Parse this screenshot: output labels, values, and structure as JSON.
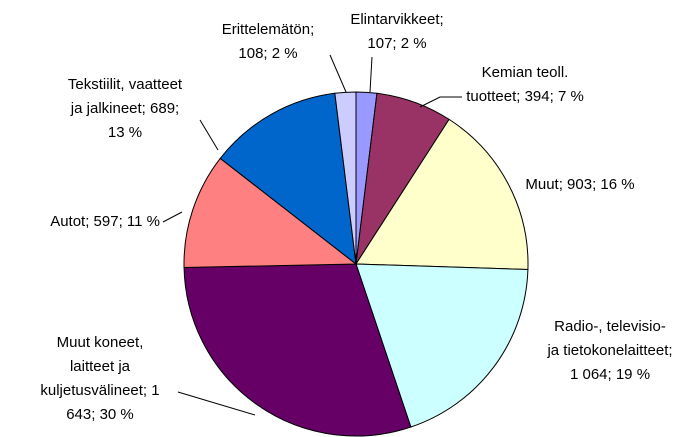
{
  "chart_data": {
    "type": "pie",
    "values": [
      107,
      394,
      903,
      1064,
      1643,
      597,
      689,
      108
    ],
    "value_labels": [
      [
        "Elintarvikkeet;",
        "107; 2 %"
      ],
      [
        "Kemian teoll.",
        "tuotteet; 394; 7 %"
      ],
      [
        "Muut; 903; 16 %"
      ],
      [
        "Radio-, televisio-",
        "ja tietokonelaitteet;",
        "1 064; 19 %"
      ],
      [
        "Muut koneet,",
        "laitteet ja",
        "kuljetusvälineet; 1",
        "643; 30 %"
      ],
      [
        "Autot; 597; 11 %"
      ],
      [
        "Tekstiilit, vaatteet",
        "ja jalkineet; 689;",
        "13 %"
      ],
      [
        "Erittelemätön;",
        "108; 2 %"
      ]
    ],
    "colors": [
      "#9999ff",
      "#993366",
      "#ffffcc",
      "#ccffff",
      "#660066",
      "#ff8080",
      "#0066cc",
      "#ccccff"
    ]
  }
}
